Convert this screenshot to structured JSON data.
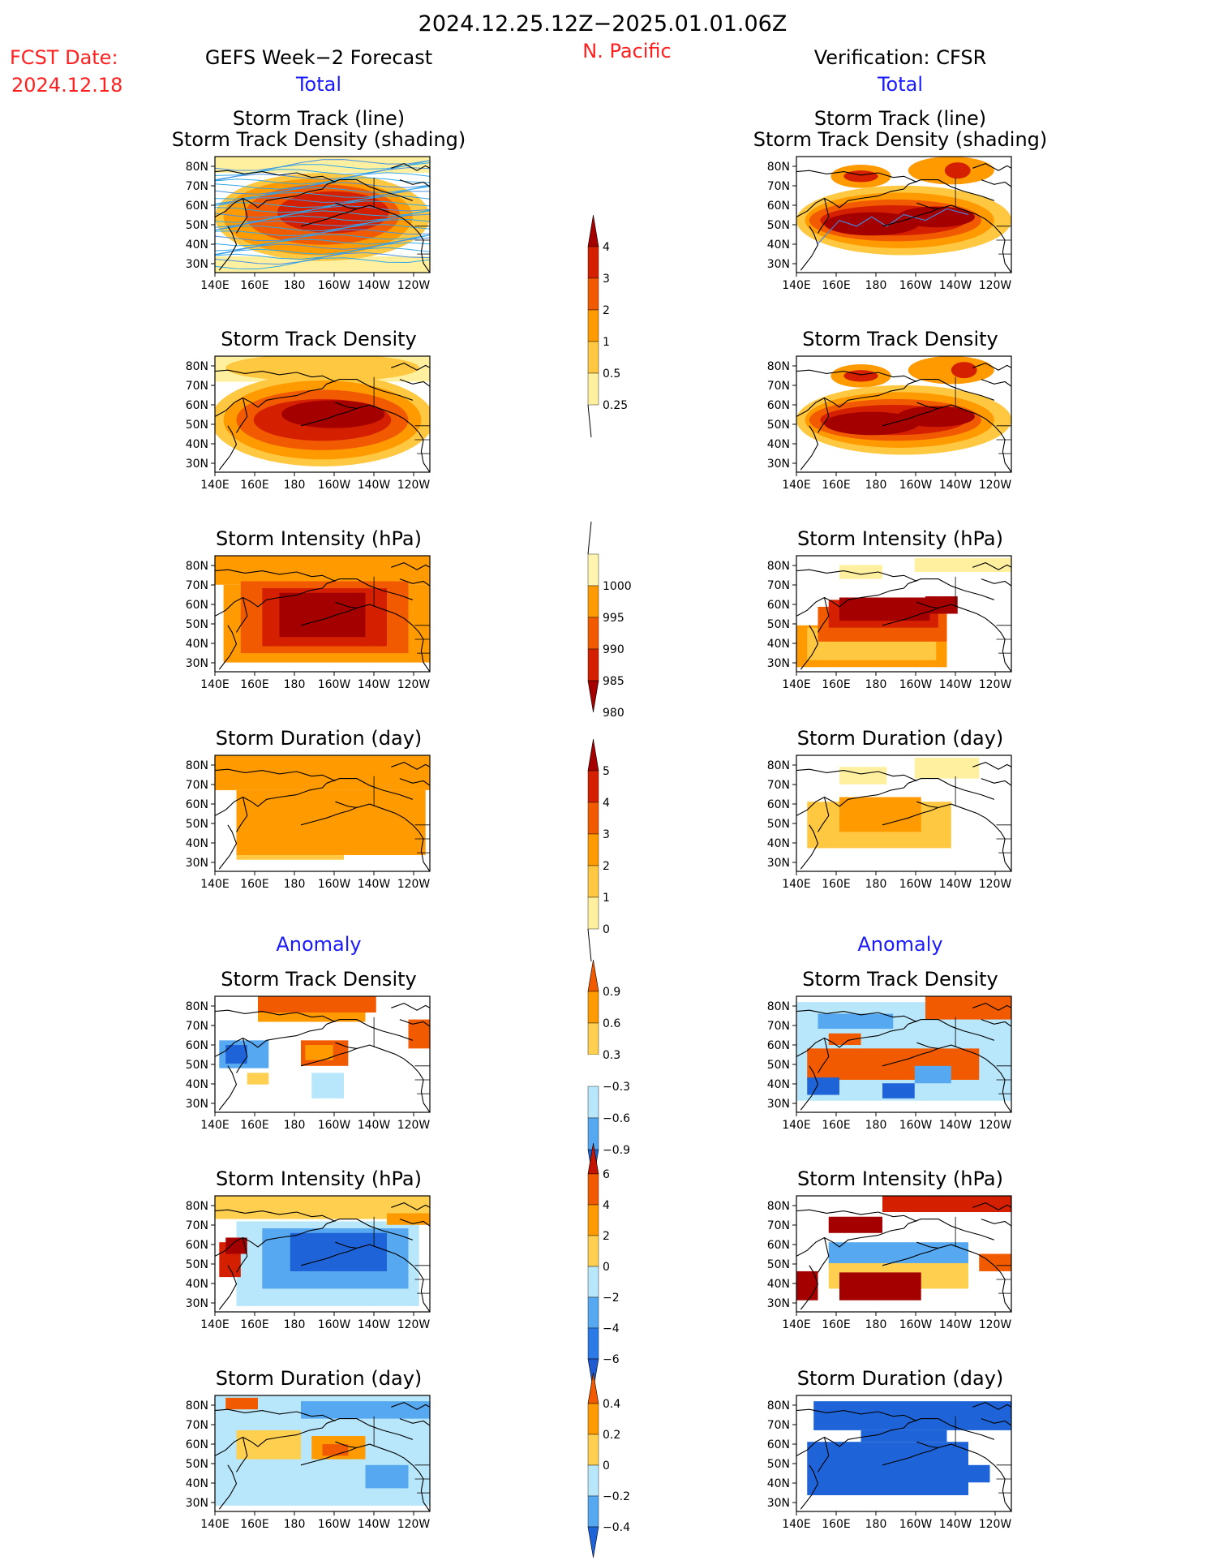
{
  "header": {
    "date_range": "2024.12.25.12Z−2025.01.01.06Z",
    "fcst_label": "FCST Date:",
    "fcst_date": "2024.12.18",
    "left_title": "GEFS Week−2 Forecast",
    "region": "N. Pacific",
    "right_title": "Verification: CFSR",
    "total_label": "Total",
    "anomaly_label": "Anomaly"
  },
  "colors": {
    "title": "#000000",
    "fcst": "#ff2020",
    "blue_label": "#1a1aff"
  },
  "axes": {
    "lat_labels": [
      "80N",
      "70N",
      "60N",
      "50N",
      "40N",
      "30N"
    ],
    "lon_labels": [
      "140E",
      "160E",
      "180",
      "160W",
      "140W",
      "120W"
    ]
  },
  "panel_titles": {
    "track1": "Storm Track (line)",
    "track2": "Storm Track Density (shading)",
    "density": "Storm Track Density",
    "intensity": "Storm Intensity (hPa)",
    "duration": "Storm Duration (day)"
  },
  "colorbars": [
    {
      "id": "density",
      "labels": [
        "4",
        "3",
        "2",
        "1",
        "0.5",
        "0.25"
      ],
      "colors": [
        "#a50000",
        "#d42000",
        "#f25a00",
        "#ff9a00",
        "#ffc840",
        "#fff0a0"
      ],
      "top_arrow": true,
      "bottom_arrow": false
    },
    {
      "id": "intensity",
      "labels": [
        "1000",
        "995",
        "990",
        "985",
        "980"
      ],
      "colors": [
        "#fff5b0",
        "#ff9a00",
        "#f25a00",
        "#d42000",
        "#a50000"
      ],
      "top_arrow": false,
      "bottom_arrow": true
    },
    {
      "id": "duration",
      "labels": [
        "5",
        "4",
        "3",
        "2",
        "1",
        "0"
      ],
      "colors": [
        "#a50000",
        "#d42000",
        "#f25a00",
        "#ff9a00",
        "#ffc840",
        "#fff0a0"
      ],
      "top_arrow": true,
      "bottom_arrow": false
    },
    {
      "id": "anom_density",
      "labels": [
        "0.9",
        "0.6",
        "0.3",
        "−0.3",
        "−0.6",
        "−0.9"
      ],
      "colors": [
        "#f25a00",
        "#ff9a00",
        "#ffd050",
        "#ffffff",
        "#b8e6fa",
        "#56a8f0",
        "#1e64d8"
      ],
      "top_arrow": true,
      "bottom_arrow": true
    },
    {
      "id": "anom_intensity",
      "labels": [
        "6",
        "4",
        "2",
        "0",
        "−2",
        "−4",
        "−6"
      ],
      "colors": [
        "#c41400",
        "#f25a00",
        "#ff9a00",
        "#ffd050",
        "#b8e6fa",
        "#56a8f0",
        "#2c7ae8",
        "#1e5ad0"
      ],
      "top_arrow": true,
      "bottom_arrow": true
    },
    {
      "id": "anom_duration",
      "labels": [
        "0.4",
        "0.2",
        "0",
        "−0.2",
        "−0.4"
      ],
      "colors": [
        "#f25a00",
        "#ff9a00",
        "#ffd050",
        "#b8e6fa",
        "#56a8f0",
        "#1e64d8"
      ],
      "top_arrow": true,
      "bottom_arrow": true
    }
  ]
}
